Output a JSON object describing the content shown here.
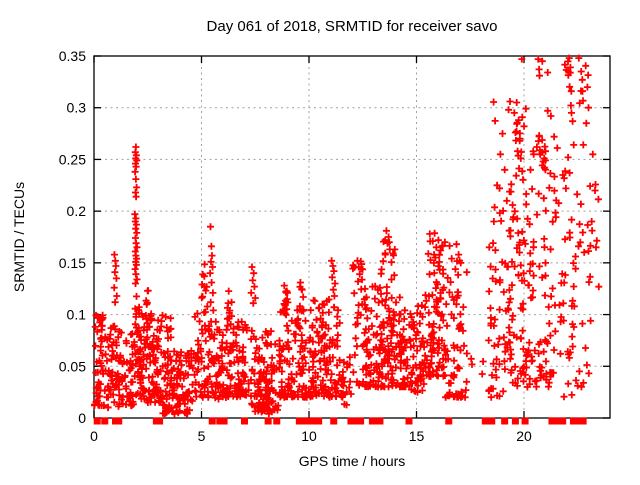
{
  "chart_data": {
    "type": "scatter",
    "title": "Day 061 of 2018, SRMTID for receiver savo",
    "xlabel": "GPS time / hours",
    "ylabel": "SRMTID / TECUs",
    "xlim": [
      0,
      24
    ],
    "ylim": [
      0,
      0.35
    ],
    "xticks": {
      "values": [
        0,
        5,
        10,
        15,
        20
      ],
      "labels": [
        "0",
        "5",
        "10",
        "15",
        "20"
      ]
    },
    "yticks": {
      "values": [
        0,
        0.05,
        0.1,
        0.15,
        0.2,
        0.25,
        0.3,
        0.35
      ],
      "labels": [
        "0",
        "0.05",
        "0.1",
        "0.15",
        "0.2",
        "0.25",
        "0.3",
        "0.35"
      ]
    },
    "grid": {
      "show": true,
      "color": "#a0a0a0",
      "style": "dashed"
    },
    "background_color": "#ffffff",
    "axis_color": "#000000",
    "marker": {
      "shape": "plus",
      "color": "#ff0000",
      "size": 7
    },
    "zero_marker": {
      "shape": "filled-square",
      "color": "#ff0000",
      "size": 7
    },
    "legend": "none",
    "seed": 7,
    "data_representation": "Dense scatter cloud approximated by density_bins (expanded with a seeded PRNG at render time) plus directly-read feature_points; zero_marker_hours are the solid squares plotted on the y=0 axis.",
    "bin_format": "[x_start_hours, x_end_hours, num_points, y_min_TECUs, y_max_TECUs, skew_toward_min]",
    "density_bins": [
      [
        0.02,
        0.55,
        55,
        0.012,
        0.1,
        1.6
      ],
      [
        0.55,
        1.15,
        45,
        0.01,
        0.09,
        1.5
      ],
      [
        1.1,
        1.85,
        55,
        0.012,
        0.085,
        1.6
      ],
      [
        1.85,
        2.15,
        30,
        0.02,
        0.125,
        1.3
      ],
      [
        2.1,
        3.2,
        110,
        0.015,
        0.105,
        1.7
      ],
      [
        2.25,
        2.6,
        10,
        0.085,
        0.125,
        1.0
      ],
      [
        3.2,
        4.6,
        120,
        0.004,
        0.065,
        1.4
      ],
      [
        3.3,
        3.6,
        8,
        0.06,
        0.1,
        1.0
      ],
      [
        4.6,
        5.35,
        50,
        0.02,
        0.12,
        1.6
      ],
      [
        5.0,
        5.25,
        8,
        0.1,
        0.152,
        1.0
      ],
      [
        5.3,
        6.2,
        70,
        0.018,
        0.095,
        1.5
      ],
      [
        6.2,
        6.55,
        10,
        0.09,
        0.131,
        1.0
      ],
      [
        6.2,
        7.2,
        80,
        0.02,
        0.095,
        1.5
      ],
      [
        7.3,
        8.6,
        95,
        0.006,
        0.085,
        1.5
      ],
      [
        7.6,
        8.15,
        25,
        0.004,
        0.03,
        1.2
      ],
      [
        8.6,
        9.3,
        55,
        0.02,
        0.105,
        1.5
      ],
      [
        8.75,
        9.1,
        8,
        0.1,
        0.128,
        1.0
      ],
      [
        9.3,
        10.2,
        70,
        0.02,
        0.105,
        1.5
      ],
      [
        9.55,
        9.75,
        5,
        0.1,
        0.13,
        1.0
      ],
      [
        10.2,
        11.45,
        110,
        0.02,
        0.115,
        1.6
      ],
      [
        11.45,
        12.0,
        25,
        0.012,
        0.062,
        1.4
      ],
      [
        12.0,
        12.6,
        30,
        0.03,
        0.152,
        1.3
      ],
      [
        12.6,
        13.35,
        70,
        0.03,
        0.135,
        1.6
      ],
      [
        13.35,
        14.1,
        85,
        0.03,
        0.173,
        1.7
      ],
      [
        14.1,
        14.65,
        45,
        0.03,
        0.12,
        1.6
      ],
      [
        14.65,
        15.35,
        55,
        0.025,
        0.115,
        1.5
      ],
      [
        15.35,
        16.35,
        95,
        0.04,
        0.18,
        1.7
      ],
      [
        16.35,
        17.35,
        70,
        0.02,
        0.17,
        1.9
      ],
      [
        17.4,
        18.3,
        4,
        0.03,
        0.065,
        1.0
      ],
      [
        18.35,
        19.3,
        50,
        0.02,
        0.17,
        1.4
      ],
      [
        18.5,
        19.3,
        8,
        0.17,
        0.31,
        1.0
      ],
      [
        19.3,
        20.3,
        85,
        0.03,
        0.25,
        1.5
      ],
      [
        19.5,
        20.1,
        10,
        0.25,
        0.308,
        1.0
      ],
      [
        20.3,
        21.25,
        60,
        0.03,
        0.26,
        1.6
      ],
      [
        20.55,
        21.0,
        8,
        0.24,
        0.275,
        1.0
      ],
      [
        21.25,
        22.3,
        45,
        0.02,
        0.3,
        1.4
      ],
      [
        21.9,
        22.25,
        8,
        0.3,
        0.35,
        1.0
      ],
      [
        22.3,
        23.1,
        25,
        0.03,
        0.27,
        1.3
      ],
      [
        22.5,
        23.0,
        6,
        0.3,
        0.348,
        1.0
      ],
      [
        22.9,
        23.5,
        8,
        0.12,
        0.25,
        1.0
      ]
    ],
    "feature_points": [
      [
        1.95,
        0.262
      ],
      [
        1.92,
        0.257
      ],
      [
        1.97,
        0.254
      ],
      [
        1.94,
        0.251
      ],
      [
        1.99,
        0.249
      ],
      [
        1.93,
        0.246
      ],
      [
        1.96,
        0.243
      ],
      [
        1.91,
        0.238
      ],
      [
        1.95,
        0.231
      ],
      [
        1.98,
        0.223
      ],
      [
        1.93,
        0.218
      ],
      [
        1.96,
        0.214
      ],
      [
        1.9,
        0.197
      ],
      [
        1.95,
        0.193
      ],
      [
        1.92,
        0.19
      ],
      [
        1.97,
        0.187
      ],
      [
        1.94,
        0.183
      ],
      [
        1.99,
        0.179
      ],
      [
        1.93,
        0.174
      ],
      [
        1.96,
        0.169
      ],
      [
        2.0,
        0.165
      ],
      [
        1.92,
        0.161
      ],
      [
        1.95,
        0.157
      ],
      [
        1.98,
        0.154
      ],
      [
        1.94,
        0.151
      ],
      [
        1.97,
        0.148
      ],
      [
        1.91,
        0.144
      ],
      [
        1.95,
        0.139
      ],
      [
        2.0,
        0.134
      ],
      [
        1.93,
        0.13
      ],
      [
        0.95,
        0.158
      ],
      [
        0.99,
        0.152
      ],
      [
        1.02,
        0.147
      ],
      [
        0.97,
        0.141
      ],
      [
        1.04,
        0.135
      ],
      [
        0.94,
        0.126
      ],
      [
        1.06,
        0.118
      ],
      [
        0.98,
        0.112
      ],
      [
        5.42,
        0.185
      ],
      [
        5.46,
        0.166
      ],
      [
        5.49,
        0.157
      ],
      [
        5.44,
        0.151
      ],
      [
        5.51,
        0.146
      ],
      [
        5.4,
        0.14
      ],
      [
        5.47,
        0.131
      ],
      [
        5.53,
        0.121
      ],
      [
        5.43,
        0.112
      ],
      [
        5.55,
        0.104
      ],
      [
        7.35,
        0.146
      ],
      [
        7.43,
        0.14
      ],
      [
        7.38,
        0.133
      ],
      [
        7.46,
        0.127
      ],
      [
        7.31,
        0.121
      ],
      [
        7.5,
        0.116
      ],
      [
        7.41,
        0.111
      ],
      [
        8.85,
        0.128
      ],
      [
        8.92,
        0.122
      ],
      [
        8.98,
        0.115
      ],
      [
        8.88,
        0.109
      ],
      [
        9.6,
        0.131
      ],
      [
        9.68,
        0.124
      ],
      [
        9.73,
        0.117
      ],
      [
        11.05,
        0.152
      ],
      [
        11.11,
        0.147
      ],
      [
        11.16,
        0.142
      ],
      [
        11.08,
        0.136
      ],
      [
        11.21,
        0.13
      ],
      [
        11.13,
        0.124
      ],
      [
        11.18,
        0.118
      ],
      [
        12.25,
        0.152
      ],
      [
        12.31,
        0.146
      ],
      [
        12.36,
        0.139
      ],
      [
        12.28,
        0.132
      ],
      [
        13.6,
        0.181
      ],
      [
        13.7,
        0.175
      ],
      [
        13.65,
        0.169
      ],
      [
        13.76,
        0.163
      ],
      [
        13.55,
        0.158
      ],
      [
        15.62,
        0.178
      ],
      [
        15.76,
        0.171
      ],
      [
        15.92,
        0.165
      ],
      [
        15.82,
        0.158
      ],
      [
        16.02,
        0.172
      ],
      [
        16.12,
        0.162
      ],
      [
        16.86,
        0.168
      ],
      [
        16.96,
        0.158
      ],
      [
        17.06,
        0.15
      ],
      [
        16.81,
        0.144
      ],
      [
        18.6,
        0.19
      ],
      [
        18.75,
        0.225
      ],
      [
        18.9,
        0.255
      ],
      [
        19.0,
        0.275
      ],
      [
        19.1,
        0.24
      ],
      [
        19.2,
        0.21
      ],
      [
        19.35,
        0.306
      ],
      [
        19.55,
        0.295
      ],
      [
        19.66,
        0.305
      ],
      [
        19.6,
        0.276
      ],
      [
        19.75,
        0.288
      ],
      [
        19.8,
        0.268
      ],
      [
        19.7,
        0.258
      ],
      [
        19.85,
        0.251
      ],
      [
        19.9,
        0.347
      ],
      [
        20.0,
        0.282
      ],
      [
        20.3,
        0.24
      ],
      [
        20.45,
        0.255
      ],
      [
        20.66,
        0.347
      ],
      [
        20.7,
        0.337
      ],
      [
        20.72,
        0.331
      ],
      [
        20.6,
        0.262
      ],
      [
        20.75,
        0.255
      ],
      [
        20.85,
        0.345
      ],
      [
        20.9,
        0.248
      ],
      [
        20.95,
        0.242
      ],
      [
        21.1,
        0.334
      ],
      [
        21.1,
        0.297
      ],
      [
        21.25,
        0.292
      ],
      [
        21.4,
        0.272
      ],
      [
        21.95,
        0.222
      ],
      [
        22.05,
        0.252
      ],
      [
        22.1,
        0.348
      ],
      [
        22.12,
        0.237
      ],
      [
        22.16,
        0.339
      ],
      [
        22.2,
        0.316
      ],
      [
        22.21,
        0.295
      ],
      [
        22.26,
        0.287
      ],
      [
        22.31,
        0.264
      ],
      [
        22.55,
        0.348
      ],
      [
        22.66,
        0.335
      ],
      [
        22.71,
        0.327
      ],
      [
        22.72,
        0.316
      ],
      [
        22.76,
        0.264
      ],
      [
        22.9,
        0.285
      ],
      [
        23.0,
        0.3
      ],
      [
        23.2,
        0.255
      ],
      [
        23.3,
        0.22
      ],
      [
        23.15,
        0.19
      ],
      [
        23.35,
        0.165
      ]
    ],
    "zero_marker_hours": [
      0.15,
      0.5,
      1.0,
      1.15,
      2.9,
      3.05,
      5.5,
      5.85,
      6.05,
      7.0,
      8.1,
      8.5,
      9.55,
      9.75,
      9.95,
      10.25,
      10.45,
      11.15,
      11.95,
      12.1,
      12.25,
      12.4,
      12.95,
      13.1,
      13.3,
      14.65,
      16.5,
      18.2,
      18.5,
      19.1,
      19.6,
      20.05,
      21.3,
      21.55,
      21.8,
      22.3,
      22.5,
      22.75
    ]
  }
}
